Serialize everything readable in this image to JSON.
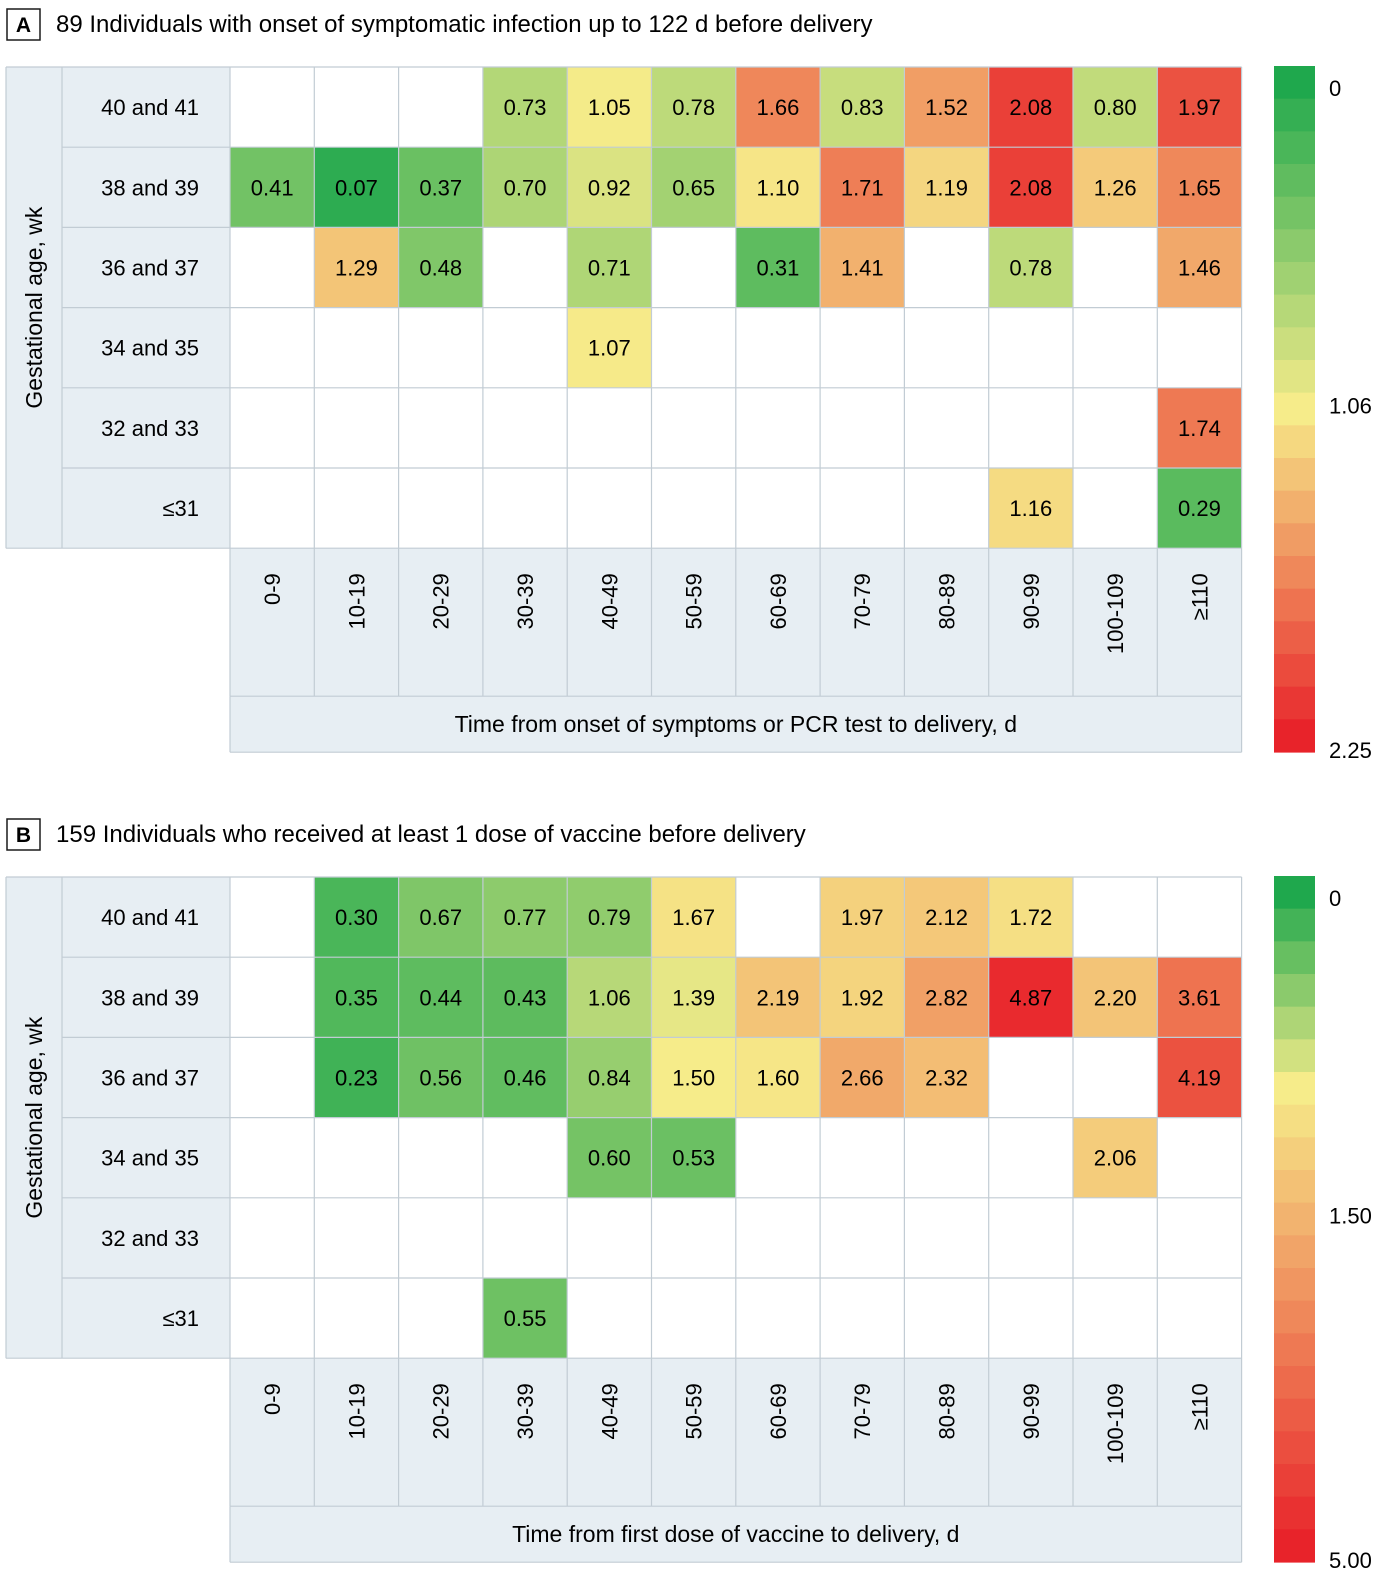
{
  "panels": [
    {
      "letter": "A",
      "title": "89 Individuals with onset of symptomatic infection up to 122 d before delivery",
      "ylabel": "Gestational age, wk",
      "xlabel": "Time from onset of symptoms or PCR test to delivery, d",
      "rows": [
        "40 and 41",
        "38 and 39",
        "36 and 37",
        "34 and 35",
        "32 and 33",
        "≤31"
      ],
      "cols": [
        "0-9",
        "10-19",
        "20-29",
        "30-39",
        "40-49",
        "50-59",
        "60-69",
        "70-79",
        "80-89",
        "90-99",
        "100-109",
        "≥110"
      ],
      "values": [
        [
          null,
          null,
          null,
          0.73,
          1.05,
          0.78,
          1.66,
          0.83,
          1.52,
          2.08,
          0.8,
          1.97
        ],
        [
          0.41,
          0.07,
          0.37,
          0.7,
          0.92,
          0.65,
          1.1,
          1.71,
          1.19,
          2.08,
          1.26,
          1.65
        ],
        [
          null,
          1.29,
          0.48,
          null,
          0.71,
          null,
          0.31,
          1.41,
          null,
          0.78,
          null,
          1.46
        ],
        [
          null,
          null,
          null,
          null,
          1.07,
          null,
          null,
          null,
          null,
          null,
          null,
          null
        ],
        [
          null,
          null,
          null,
          null,
          null,
          null,
          null,
          null,
          null,
          null,
          null,
          1.74
        ],
        [
          null,
          null,
          null,
          null,
          null,
          null,
          null,
          null,
          null,
          1.16,
          null,
          0.29
        ]
      ],
      "scale": {
        "min": 0,
        "mid": 1.06,
        "max": 2.25,
        "labels": [
          "0",
          "1.06",
          "2.25"
        ]
      }
    },
    {
      "letter": "B",
      "title": "159 Individuals who received at least 1 dose of vaccine before delivery",
      "ylabel": "Gestational age, wk",
      "xlabel": "Time from first dose of vaccine to delivery, d",
      "rows": [
        "40 and 41",
        "38 and 39",
        "36 and 37",
        "34 and 35",
        "32 and 33",
        "≤31"
      ],
      "cols": [
        "0-9",
        "10-19",
        "20-29",
        "30-39",
        "40-49",
        "50-59",
        "60-69",
        "70-79",
        "80-89",
        "90-99",
        "100-109",
        "≥110"
      ],
      "values": [
        [
          null,
          0.3,
          0.67,
          0.77,
          0.79,
          1.67,
          null,
          1.97,
          2.12,
          1.72,
          null,
          null
        ],
        [
          null,
          0.35,
          0.44,
          0.43,
          1.06,
          1.39,
          2.19,
          1.92,
          2.82,
          4.87,
          2.2,
          3.61
        ],
        [
          null,
          0.23,
          0.56,
          0.46,
          0.84,
          1.5,
          1.6,
          2.66,
          2.32,
          null,
          null,
          4.19
        ],
        [
          null,
          null,
          null,
          null,
          0.6,
          0.53,
          null,
          null,
          null,
          null,
          2.06,
          null
        ],
        [
          null,
          null,
          null,
          null,
          null,
          null,
          null,
          null,
          null,
          null,
          null,
          null
        ],
        [
          null,
          null,
          null,
          0.55,
          null,
          null,
          null,
          null,
          null,
          null,
          null,
          null
        ]
      ],
      "scale": {
        "min": 0,
        "mid": 1.5,
        "max": 5.0,
        "labels": [
          "0",
          "1.50",
          "5.00"
        ]
      }
    }
  ],
  "chart_data": [
    {
      "type": "heatmap",
      "title": "89 Individuals with onset of symptomatic infection up to 122 d before delivery",
      "xlabel": "Time from onset of symptoms or PCR test to delivery, d",
      "ylabel": "Gestational age, wk",
      "x": [
        "0-9",
        "10-19",
        "20-29",
        "30-39",
        "40-49",
        "50-59",
        "60-69",
        "70-79",
        "80-89",
        "90-99",
        "100-109",
        "≥110"
      ],
      "y": [
        "40 and 41",
        "38 and 39",
        "36 and 37",
        "34 and 35",
        "32 and 33",
        "≤31"
      ],
      "colorbar": {
        "min": 0,
        "mid": 1.06,
        "max": 2.25,
        "colors": [
          "#1fa84d",
          "#f6ec8a",
          "#e8232a"
        ]
      }
    },
    {
      "type": "heatmap",
      "title": "159 Individuals who received at least 1 dose of vaccine before delivery",
      "xlabel": "Time from first dose of vaccine to delivery, d",
      "ylabel": "Gestational age, wk",
      "x": [
        "0-9",
        "10-19",
        "20-29",
        "30-39",
        "40-49",
        "50-59",
        "60-69",
        "70-79",
        "80-89",
        "90-99",
        "100-109",
        "≥110"
      ],
      "y": [
        "40 and 41",
        "38 and 39",
        "36 and 37",
        "34 and 35",
        "32 and 33",
        "≤31"
      ],
      "colorbar": {
        "min": 0,
        "mid": 1.5,
        "max": 5.0,
        "colors": [
          "#1fa84d",
          "#f6ec8a",
          "#e8232a"
        ]
      }
    }
  ],
  "colors": {
    "green": "#1fa84d",
    "yellow": "#f6ec8a",
    "red": "#e8232a",
    "header_bg": "#e7eef3",
    "grid": "#c2ccd4"
  }
}
